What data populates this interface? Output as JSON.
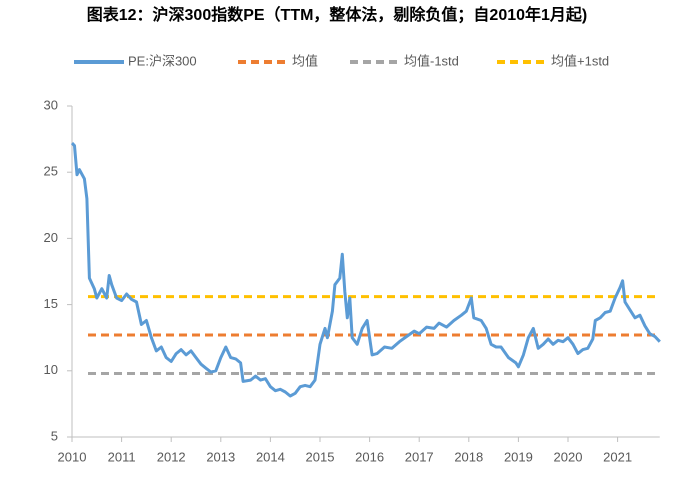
{
  "chart_data": {
    "type": "line",
    "title": "图表12：沪深300指数PE（TTM，整体法，剔除负值；自2010年1月起)",
    "x": [
      2010.0,
      2010.05,
      2010.1,
      2010.15,
      2010.25,
      2010.3,
      2010.35,
      2010.45,
      2010.5,
      2010.6,
      2010.7,
      2010.75,
      2010.8,
      2010.9,
      2011.0,
      2011.1,
      2011.2,
      2011.3,
      2011.4,
      2011.5,
      2011.6,
      2011.7,
      2011.8,
      2011.9,
      2012.0,
      2012.1,
      2012.2,
      2012.3,
      2012.4,
      2012.5,
      2012.6,
      2012.7,
      2012.8,
      2012.9,
      2013.0,
      2013.1,
      2013.2,
      2013.3,
      2013.4,
      2013.45,
      2013.6,
      2013.7,
      2013.8,
      2013.9,
      2014.0,
      2014.1,
      2014.2,
      2014.3,
      2014.4,
      2014.5,
      2014.6,
      2014.7,
      2014.8,
      2014.9,
      2015.0,
      2015.1,
      2015.15,
      2015.25,
      2015.3,
      2015.4,
      2015.45,
      2015.5,
      2015.55,
      2015.6,
      2015.65,
      2015.75,
      2015.85,
      2015.95,
      2016.05,
      2016.15,
      2016.3,
      2016.45,
      2016.6,
      2016.75,
      2016.9,
      2017.0,
      2017.15,
      2017.3,
      2017.4,
      2017.55,
      2017.7,
      2017.85,
      2017.95,
      2018.0,
      2018.05,
      2018.1,
      2018.25,
      2018.35,
      2018.45,
      2018.55,
      2018.65,
      2018.8,
      2018.95,
      2019.0,
      2019.1,
      2019.2,
      2019.3,
      2019.4,
      2019.5,
      2019.6,
      2019.7,
      2019.8,
      2019.9,
      2020.0,
      2020.1,
      2020.2,
      2020.3,
      2020.4,
      2020.5,
      2020.55,
      2020.65,
      2020.75,
      2020.85,
      2020.95,
      2021.05,
      2021.1,
      2021.15,
      2021.25,
      2021.35,
      2021.45,
      2021.55,
      2021.65,
      2021.75,
      2021.85
    ],
    "series": [
      {
        "name": "PE:沪深300",
        "color": "#5b9bd5",
        "values": [
          27.2,
          27.0,
          24.8,
          25.2,
          24.5,
          23,
          17,
          16.2,
          15.5,
          16.2,
          15.5,
          17.2,
          16.5,
          15.5,
          15.3,
          15.8,
          15.4,
          15.2,
          13.5,
          13.8,
          12.5,
          11.5,
          11.8,
          11.0,
          10.7,
          11.3,
          11.6,
          11.2,
          11.5,
          11.0,
          10.5,
          10.2,
          9.9,
          10.0,
          11.0,
          11.8,
          11.0,
          10.9,
          10.6,
          9.2,
          9.3,
          9.6,
          9.3,
          9.4,
          8.8,
          8.5,
          8.6,
          8.4,
          8.1,
          8.3,
          8.8,
          8.9,
          8.8,
          9.3,
          12.0,
          13.2,
          12.5,
          14.5,
          16.5,
          17.0,
          18.8,
          16.0,
          14.0,
          15.5,
          12.5,
          12.0,
          13.2,
          13.8,
          11.2,
          11.3,
          11.8,
          11.7,
          12.2,
          12.6,
          13.0,
          12.8,
          13.3,
          13.2,
          13.6,
          13.3,
          13.8,
          14.2,
          14.5,
          15.0,
          15.5,
          14.0,
          13.8,
          13.2,
          12.0,
          11.8,
          11.8,
          11.0,
          10.6,
          10.3,
          11.2,
          12.5,
          13.2,
          11.7,
          12.0,
          12.4,
          12.0,
          12.3,
          12.2,
          12.5,
          12.0,
          11.3,
          11.6,
          11.7,
          12.4,
          13.8,
          14.0,
          14.4,
          14.5,
          15.5,
          16.3,
          16.8,
          15.2,
          14.6,
          14.0,
          14.2,
          13.4,
          12.8,
          12.6,
          12.2
        ]
      }
    ],
    "reference_lines": [
      {
        "name": "均值",
        "color": "#ed7d31",
        "value": 12.7
      },
      {
        "name": "均值-1std",
        "color": "#a5a5a5",
        "value": 9.8
      },
      {
        "name": "均值+1std",
        "color": "#ffc000",
        "value": 15.6
      }
    ],
    "xlim": [
      2010,
      2021.85
    ],
    "xticks": [
      2010,
      2011,
      2012,
      2013,
      2014,
      2015,
      2016,
      2017,
      2018,
      2019,
      2020,
      2021
    ],
    "ylim": [
      5,
      30
    ],
    "yticks": [
      5,
      10,
      15,
      20,
      25,
      30
    ]
  }
}
